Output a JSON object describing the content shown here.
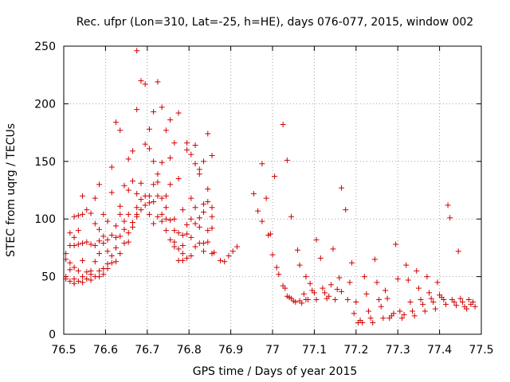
{
  "chart_data": {
    "type": "scatter",
    "title": "Rec. ufpr (Lon=310, Lat=-25, h=HE), days 076-077, 2015, window 002",
    "xlabel": "GPS time / Days of year 2015",
    "ylabel": "STEC from uqrg / TECUs",
    "xlim": [
      76.5,
      77.5
    ],
    "ylim": [
      0,
      250
    ],
    "xticks": [
      76.5,
      76.6,
      76.7,
      76.8,
      76.9,
      77,
      77.1,
      77.2,
      77.3,
      77.4,
      77.5
    ],
    "xtick_labels": [
      "76.5",
      "76.6",
      "76.7",
      "76.8",
      "76.9",
      "77",
      "77.1",
      "77.2",
      "77.3",
      "77.4",
      "77.5"
    ],
    "yticks": [
      0,
      50,
      100,
      150,
      200,
      250
    ],
    "ytick_labels": [
      "0",
      "50",
      "100",
      "150",
      "200",
      "250"
    ],
    "grid": true,
    "marker": "+",
    "marker_color": "#d00000",
    "series": [
      {
        "name": "",
        "points": [
          [
            76.505,
            70
          ],
          [
            76.505,
            65
          ],
          [
            76.505,
            50
          ],
          [
            76.505,
            48
          ],
          [
            76.515,
            88
          ],
          [
            76.515,
            77
          ],
          [
            76.515,
            62
          ],
          [
            76.515,
            56
          ],
          [
            76.515,
            46
          ],
          [
            76.525,
            102
          ],
          [
            76.525,
            84
          ],
          [
            76.525,
            77
          ],
          [
            76.525,
            58
          ],
          [
            76.525,
            48
          ],
          [
            76.525,
            44
          ],
          [
            76.535,
            103
          ],
          [
            76.535,
            90
          ],
          [
            76.535,
            78
          ],
          [
            76.535,
            55
          ],
          [
            76.535,
            46
          ],
          [
            76.545,
            120
          ],
          [
            76.545,
            104
          ],
          [
            76.545,
            79
          ],
          [
            76.545,
            64
          ],
          [
            76.545,
            50
          ],
          [
            76.545,
            45
          ],
          [
            76.555,
            108
          ],
          [
            76.555,
            80
          ],
          [
            76.555,
            54
          ],
          [
            76.555,
            48
          ],
          [
            76.565,
            105
          ],
          [
            76.565,
            78
          ],
          [
            76.565,
            55
          ],
          [
            76.565,
            52
          ],
          [
            76.565,
            47
          ],
          [
            76.575,
            118
          ],
          [
            76.575,
            96
          ],
          [
            76.575,
            77
          ],
          [
            76.575,
            63
          ],
          [
            76.575,
            50
          ],
          [
            76.585,
            130
          ],
          [
            76.585,
            91
          ],
          [
            76.585,
            81
          ],
          [
            76.585,
            70
          ],
          [
            76.585,
            55
          ],
          [
            76.585,
            50
          ],
          [
            76.595,
            104
          ],
          [
            76.595,
            85
          ],
          [
            76.595,
            79
          ],
          [
            76.595,
            57
          ],
          [
            76.595,
            52
          ],
          [
            76.605,
            98
          ],
          [
            76.605,
            82
          ],
          [
            76.605,
            72
          ],
          [
            76.605,
            61
          ],
          [
            76.605,
            57
          ],
          [
            76.615,
            145
          ],
          [
            76.615,
            123
          ],
          [
            76.615,
            86
          ],
          [
            76.615,
            68
          ],
          [
            76.615,
            62
          ],
          [
            76.625,
            184
          ],
          [
            76.625,
            94
          ],
          [
            76.625,
            84
          ],
          [
            76.625,
            75
          ],
          [
            76.625,
            63
          ],
          [
            76.635,
            177
          ],
          [
            76.635,
            111
          ],
          [
            76.635,
            104
          ],
          [
            76.635,
            85
          ],
          [
            76.635,
            70
          ],
          [
            76.645,
            129
          ],
          [
            76.645,
            98
          ],
          [
            76.645,
            91
          ],
          [
            76.645,
            79
          ],
          [
            76.655,
            152
          ],
          [
            76.655,
            125
          ],
          [
            76.655,
            104
          ],
          [
            76.655,
            88
          ],
          [
            76.655,
            80
          ],
          [
            76.665,
            159
          ],
          [
            76.665,
            133
          ],
          [
            76.665,
            97
          ],
          [
            76.665,
            93
          ],
          [
            76.675,
            246
          ],
          [
            76.675,
            195
          ],
          [
            76.675,
            122
          ],
          [
            76.675,
            110
          ],
          [
            76.675,
            104
          ],
          [
            76.675,
            102
          ],
          [
            76.685,
            220
          ],
          [
            76.685,
            131
          ],
          [
            76.685,
            117
          ],
          [
            76.685,
            108
          ],
          [
            76.695,
            217
          ],
          [
            76.695,
            165
          ],
          [
            76.695,
            120
          ],
          [
            76.695,
            112
          ],
          [
            76.705,
            178
          ],
          [
            76.705,
            161
          ],
          [
            76.705,
            120
          ],
          [
            76.705,
            114
          ],
          [
            76.705,
            104
          ],
          [
            76.715,
            193
          ],
          [
            76.715,
            150
          ],
          [
            76.715,
            130
          ],
          [
            76.715,
            115
          ],
          [
            76.715,
            96
          ],
          [
            76.725,
            219
          ],
          [
            76.725,
            139
          ],
          [
            76.725,
            132
          ],
          [
            76.725,
            120
          ],
          [
            76.725,
            102
          ],
          [
            76.735,
            197
          ],
          [
            76.735,
            149
          ],
          [
            76.735,
            118
          ],
          [
            76.735,
            104
          ],
          [
            76.735,
            98
          ],
          [
            76.745,
            177
          ],
          [
            76.745,
            120
          ],
          [
            76.745,
            110
          ],
          [
            76.745,
            100
          ],
          [
            76.745,
            90
          ],
          [
            76.755,
            186
          ],
          [
            76.755,
            153
          ],
          [
            76.755,
            130
          ],
          [
            76.755,
            99
          ],
          [
            76.755,
            82
          ],
          [
            76.765,
            166
          ],
          [
            76.765,
            100
          ],
          [
            76.765,
            90
          ],
          [
            76.765,
            80
          ],
          [
            76.765,
            76
          ],
          [
            76.775,
            192
          ],
          [
            76.775,
            135
          ],
          [
            76.775,
            88
          ],
          [
            76.775,
            74
          ],
          [
            76.775,
            64
          ],
          [
            76.785,
            108
          ],
          [
            76.785,
            86
          ],
          [
            76.785,
            77
          ],
          [
            76.785,
            70
          ],
          [
            76.785,
            64
          ],
          [
            76.795,
            166
          ],
          [
            76.795,
            160
          ],
          [
            76.795,
            95
          ],
          [
            76.795,
            87
          ],
          [
            76.795,
            66
          ],
          [
            76.805,
            156
          ],
          [
            76.805,
            118
          ],
          [
            76.805,
            100
          ],
          [
            76.805,
            84
          ],
          [
            76.805,
            68
          ],
          [
            76.815,
            164
          ],
          [
            76.815,
            148
          ],
          [
            76.815,
            110
          ],
          [
            76.815,
            96
          ],
          [
            76.815,
            76
          ],
          [
            76.825,
            143
          ],
          [
            76.825,
            139
          ],
          [
            76.825,
            101
          ],
          [
            76.825,
            93
          ],
          [
            76.825,
            79
          ],
          [
            76.835,
            150
          ],
          [
            76.835,
            113
          ],
          [
            76.835,
            106
          ],
          [
            76.835,
            79
          ],
          [
            76.835,
            72
          ],
          [
            76.845,
            174
          ],
          [
            76.845,
            126
          ],
          [
            76.845,
            115
          ],
          [
            76.845,
            90
          ],
          [
            76.845,
            80
          ],
          [
            76.855,
            155
          ],
          [
            76.855,
            110
          ],
          [
            76.855,
            102
          ],
          [
            76.855,
            92
          ],
          [
            76.855,
            70
          ],
          [
            76.86,
            71
          ],
          [
            76.875,
            64
          ],
          [
            76.885,
            63
          ],
          [
            76.895,
            68
          ],
          [
            76.905,
            72
          ],
          [
            76.915,
            76
          ],
          [
            76.955,
            122
          ],
          [
            76.965,
            107
          ],
          [
            76.975,
            148
          ],
          [
            76.975,
            98
          ],
          [
            76.985,
            118
          ],
          [
            76.99,
            86
          ],
          [
            76.995,
            87
          ],
          [
            77.0,
            69
          ],
          [
            77.005,
            137
          ],
          [
            77.01,
            58
          ],
          [
            77.015,
            52
          ],
          [
            77.025,
            182
          ],
          [
            77.025,
            42
          ],
          [
            77.03,
            40
          ],
          [
            77.035,
            151
          ],
          [
            77.035,
            33
          ],
          [
            77.04,
            32
          ],
          [
            77.045,
            102
          ],
          [
            77.045,
            31
          ],
          [
            77.05,
            29
          ],
          [
            77.055,
            28
          ],
          [
            77.06,
            73
          ],
          [
            77.065,
            60
          ],
          [
            77.065,
            29
          ],
          [
            77.07,
            27
          ],
          [
            77.075,
            35
          ],
          [
            77.08,
            50
          ],
          [
            77.08,
            30
          ],
          [
            77.085,
            30
          ],
          [
            77.09,
            44
          ],
          [
            77.095,
            38
          ],
          [
            77.1,
            36
          ],
          [
            77.105,
            82
          ],
          [
            77.105,
            30
          ],
          [
            77.115,
            66
          ],
          [
            77.12,
            40
          ],
          [
            77.125,
            36
          ],
          [
            77.13,
            31
          ],
          [
            77.135,
            33
          ],
          [
            77.14,
            43
          ],
          [
            77.145,
            74
          ],
          [
            77.15,
            30
          ],
          [
            77.155,
            39
          ],
          [
            77.16,
            49
          ],
          [
            77.165,
            127
          ],
          [
            77.165,
            37
          ],
          [
            77.175,
            108
          ],
          [
            77.18,
            30
          ],
          [
            77.185,
            45
          ],
          [
            77.19,
            62
          ],
          [
            77.195,
            18
          ],
          [
            77.2,
            28
          ],
          [
            77.205,
            10
          ],
          [
            77.21,
            12
          ],
          [
            77.215,
            10
          ],
          [
            77.22,
            50
          ],
          [
            77.225,
            35
          ],
          [
            77.23,
            20
          ],
          [
            77.235,
            14
          ],
          [
            77.24,
            10
          ],
          [
            77.245,
            65
          ],
          [
            77.25,
            45
          ],
          [
            77.255,
            30
          ],
          [
            77.26,
            24
          ],
          [
            77.265,
            14
          ],
          [
            77.27,
            38
          ],
          [
            77.275,
            31
          ],
          [
            77.28,
            14
          ],
          [
            77.285,
            16
          ],
          [
            77.29,
            18
          ],
          [
            77.295,
            78
          ],
          [
            77.3,
            48
          ],
          [
            77.305,
            20
          ],
          [
            77.31,
            14
          ],
          [
            77.315,
            17
          ],
          [
            77.32,
            60
          ],
          [
            77.325,
            47
          ],
          [
            77.33,
            28
          ],
          [
            77.335,
            20
          ],
          [
            77.34,
            16
          ],
          [
            77.345,
            55
          ],
          [
            77.35,
            40
          ],
          [
            77.355,
            30
          ],
          [
            77.36,
            26
          ],
          [
            77.365,
            20
          ],
          [
            77.37,
            50
          ],
          [
            77.375,
            36
          ],
          [
            77.38,
            31
          ],
          [
            77.385,
            28
          ],
          [
            77.39,
            22
          ],
          [
            77.395,
            45
          ],
          [
            77.4,
            34
          ],
          [
            77.405,
            32
          ],
          [
            77.41,
            30
          ],
          [
            77.415,
            26
          ],
          [
            77.42,
            112
          ],
          [
            77.425,
            101
          ],
          [
            77.43,
            30
          ],
          [
            77.435,
            28
          ],
          [
            77.44,
            25
          ],
          [
            77.445,
            72
          ],
          [
            77.45,
            31
          ],
          [
            77.455,
            28
          ],
          [
            77.46,
            24
          ],
          [
            77.465,
            22
          ],
          [
            77.47,
            30
          ],
          [
            77.475,
            26
          ],
          [
            77.48,
            28
          ],
          [
            77.485,
            24
          ]
        ]
      }
    ]
  }
}
